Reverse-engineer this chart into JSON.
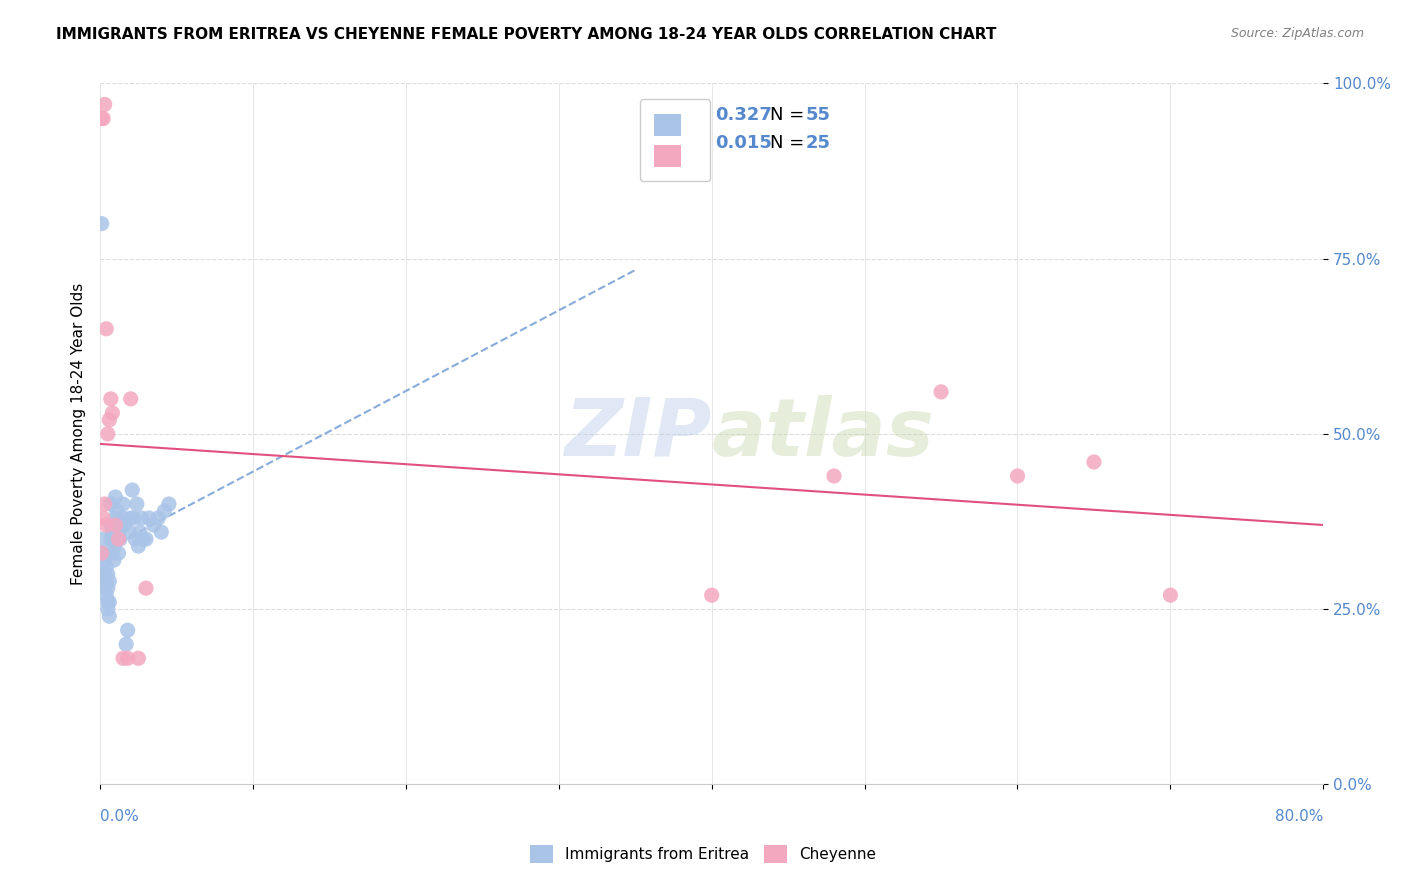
{
  "title": "IMMIGRANTS FROM ERITREA VS CHEYENNE FEMALE POVERTY AMONG 18-24 YEAR OLDS CORRELATION CHART",
  "source": "Source: ZipAtlas.com",
  "ylabel": "Female Poverty Among 18-24 Year Olds",
  "xlim": [
    0,
    0.8
  ],
  "ylim": [
    0,
    1.0
  ],
  "yticks": [
    0,
    0.25,
    0.5,
    0.75,
    1.0
  ],
  "ytick_labels": [
    "0.0%",
    "25.0%",
    "50.0%",
    "75.0%",
    "100.0%"
  ],
  "blue_color": "#aac4e8",
  "pink_color": "#f4a8c0",
  "trend_blue_color": "#5588cc",
  "trend_pink_color": "#e05080",
  "watermark_zip": "ZIP",
  "watermark_atlas": "atlas",
  "blue_scatter_x": [
    0.001,
    0.002,
    0.002,
    0.003,
    0.003,
    0.003,
    0.004,
    0.004,
    0.004,
    0.005,
    0.005,
    0.005,
    0.005,
    0.006,
    0.006,
    0.006,
    0.007,
    0.007,
    0.007,
    0.008,
    0.008,
    0.009,
    0.009,
    0.01,
    0.01,
    0.011,
    0.011,
    0.012,
    0.012,
    0.013,
    0.014,
    0.015,
    0.015,
    0.016,
    0.017,
    0.018,
    0.019,
    0.02,
    0.021,
    0.022,
    0.023,
    0.024,
    0.025,
    0.026,
    0.027,
    0.028,
    0.03,
    0.032,
    0.035,
    0.038,
    0.04,
    0.042,
    0.045,
    0.01,
    0.001
  ],
  "blue_scatter_y": [
    0.3,
    0.33,
    0.35,
    0.28,
    0.3,
    0.32,
    0.27,
    0.29,
    0.31,
    0.25,
    0.26,
    0.28,
    0.3,
    0.24,
    0.26,
    0.29,
    0.35,
    0.37,
    0.4,
    0.33,
    0.36,
    0.32,
    0.34,
    0.38,
    0.41,
    0.36,
    0.39,
    0.33,
    0.36,
    0.35,
    0.37,
    0.38,
    0.4,
    0.37,
    0.2,
    0.22,
    0.36,
    0.38,
    0.42,
    0.38,
    0.35,
    0.4,
    0.34,
    0.36,
    0.38,
    0.35,
    0.35,
    0.38,
    0.37,
    0.38,
    0.36,
    0.39,
    0.4,
    0.37,
    0.8
  ],
  "pink_scatter_x": [
    0.001,
    0.002,
    0.003,
    0.004,
    0.005,
    0.006,
    0.007,
    0.008,
    0.01,
    0.012,
    0.015,
    0.018,
    0.02,
    0.025,
    0.03,
    0.4,
    0.48,
    0.55,
    0.6,
    0.65,
    0.7,
    0.001,
    0.002,
    0.003,
    0.004
  ],
  "pink_scatter_y": [
    0.95,
    0.95,
    0.97,
    0.65,
    0.5,
    0.52,
    0.55,
    0.53,
    0.37,
    0.35,
    0.18,
    0.18,
    0.55,
    0.18,
    0.28,
    0.27,
    0.44,
    0.56,
    0.44,
    0.46,
    0.27,
    0.33,
    0.38,
    0.4,
    0.37
  ],
  "label_blue": "Immigrants from Eritrea",
  "label_pink": "Cheyenne"
}
